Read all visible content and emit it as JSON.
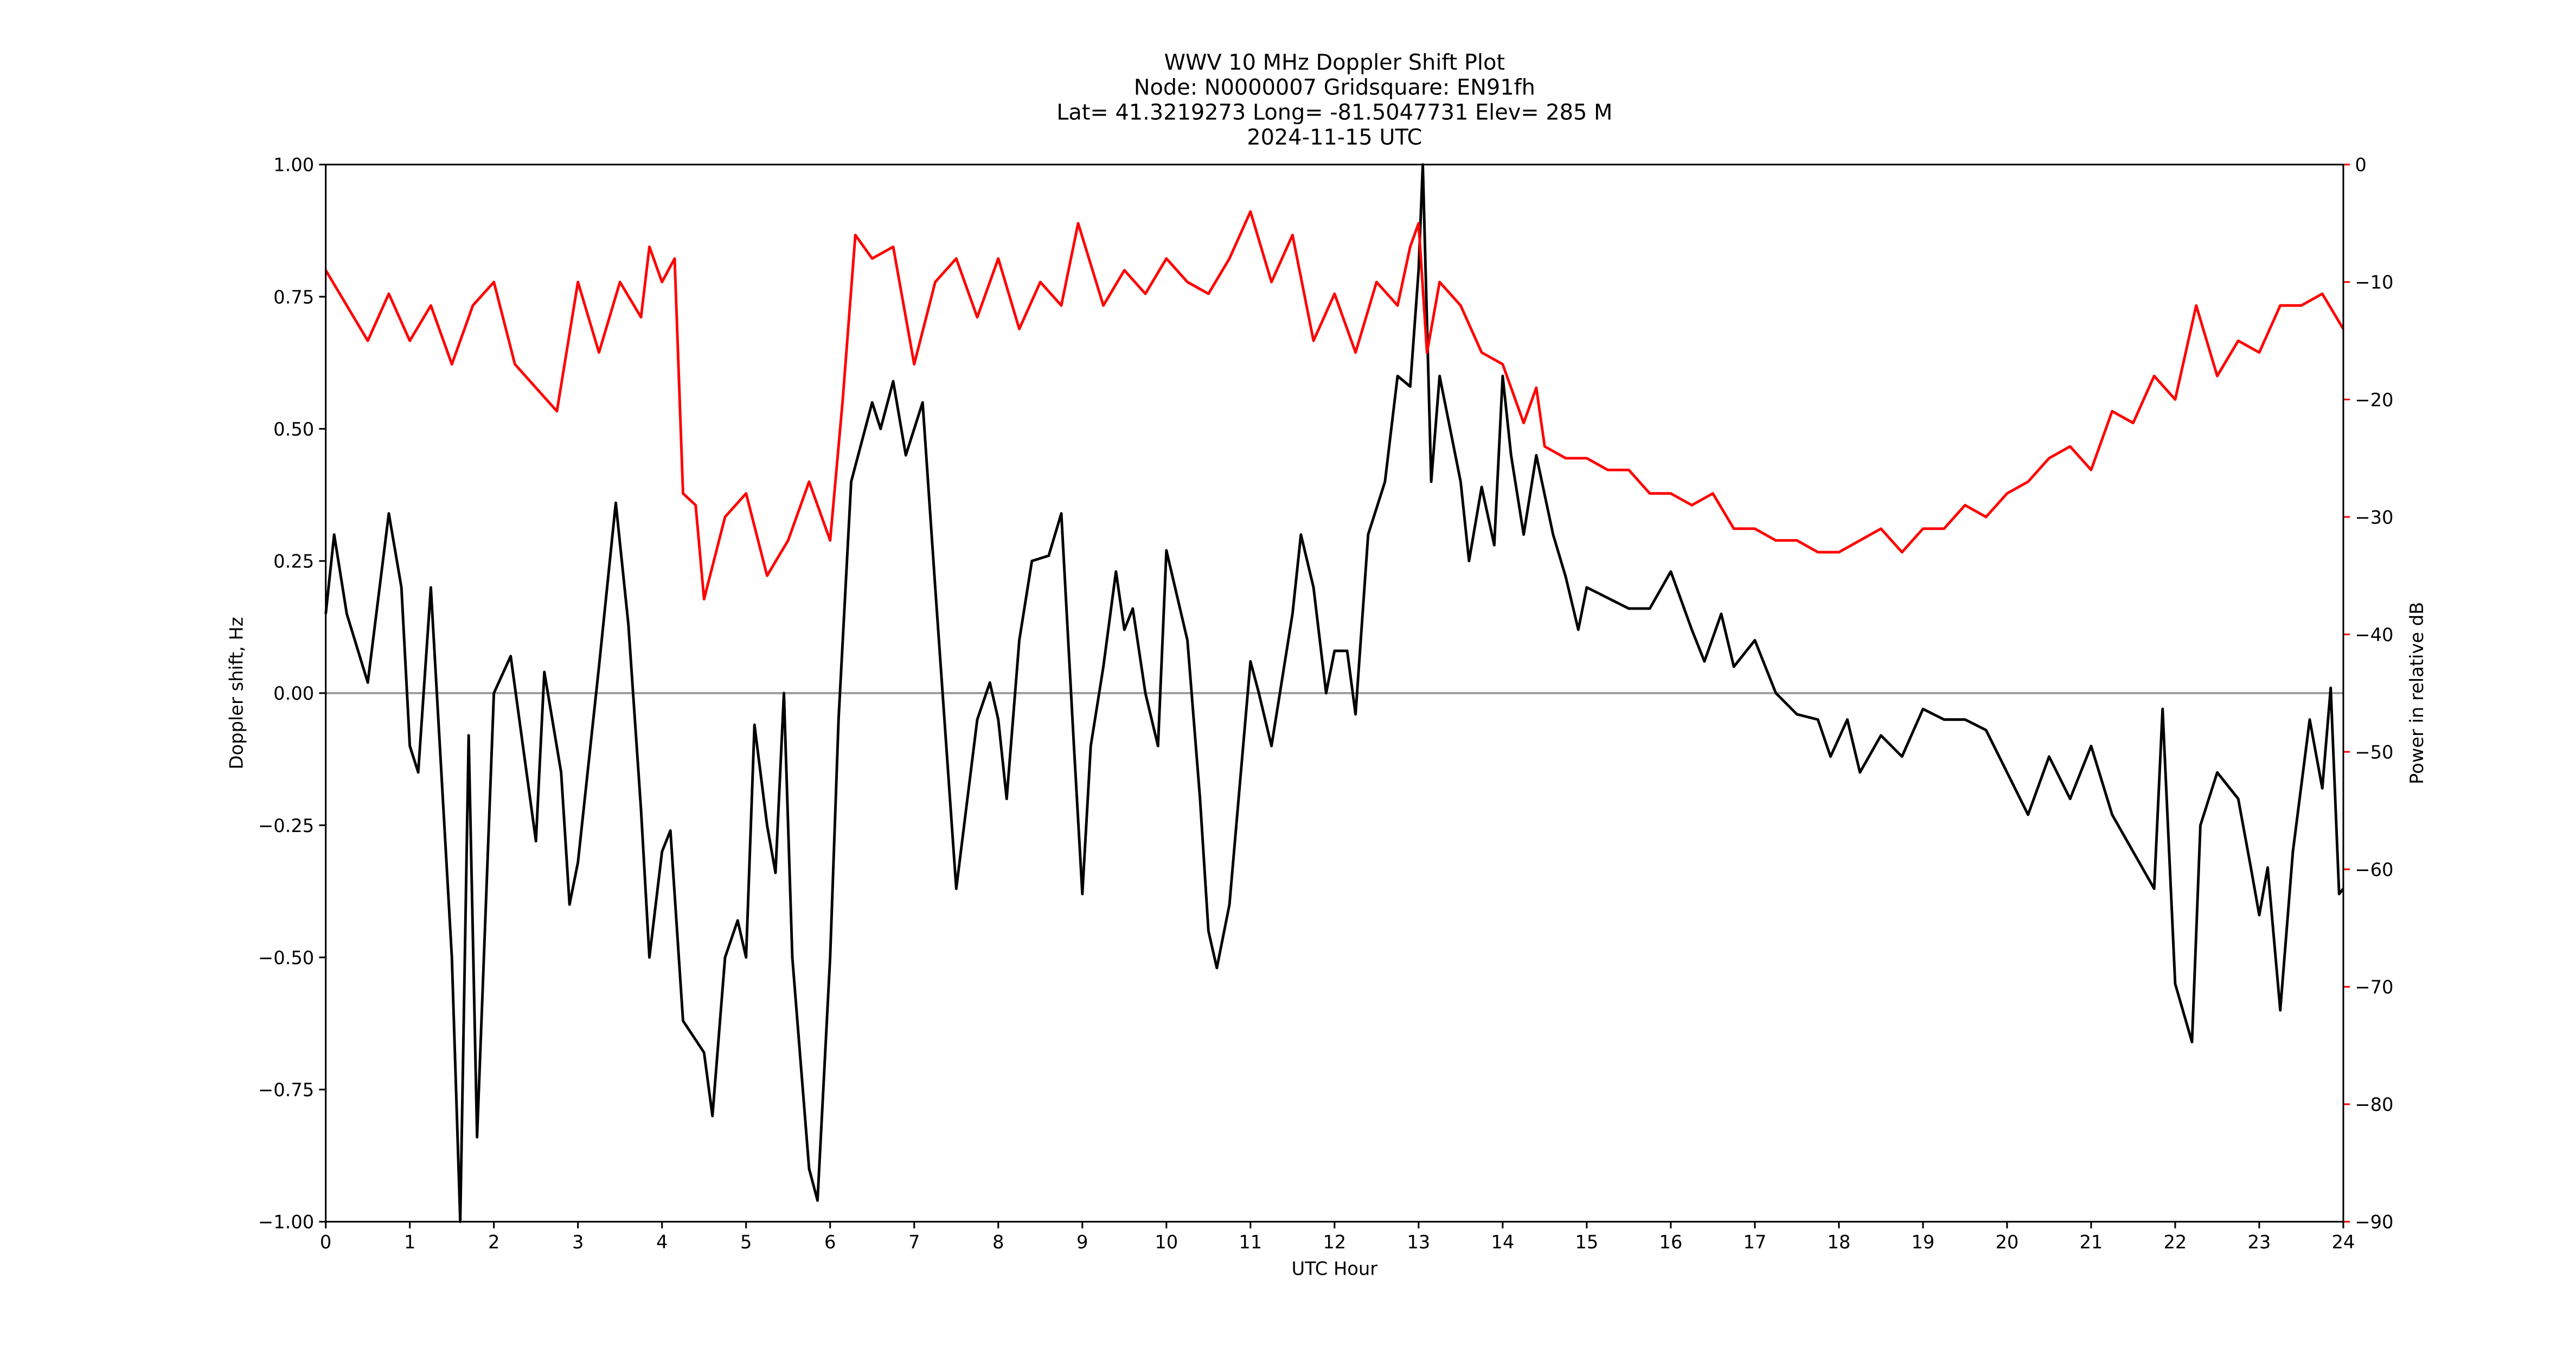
{
  "chart_data": {
    "type": "line",
    "title": [
      "WWV 10 MHz Doppler Shift Plot",
      "Node:  N0000007     Gridsquare:  EN91fh",
      "Lat= 41.3219273    Long= -81.5047731    Elev= 285 M",
      "2024-11-15  UTC"
    ],
    "xlabel": "UTC Hour",
    "ylabel": "Doppler shift, Hz",
    "y2label": "Power in relative dB",
    "xlim": [
      0,
      24
    ],
    "xticks": [
      0,
      1,
      2,
      3,
      4,
      5,
      6,
      7,
      8,
      9,
      10,
      11,
      12,
      13,
      14,
      15,
      16,
      17,
      18,
      19,
      20,
      21,
      22,
      23,
      24
    ],
    "ylim": [
      -1,
      1
    ],
    "yticks": [
      {
        "value": -1,
        "label": "−1.00"
      },
      {
        "value": -0.75,
        "label": "−0.75"
      },
      {
        "value": -0.5,
        "label": "−0.50"
      },
      {
        "value": -0.25,
        "label": "−0.25"
      },
      {
        "value": 0,
        "label": "0.00"
      },
      {
        "value": 0.25,
        "label": "0.25"
      },
      {
        "value": 0.5,
        "label": "0.50"
      },
      {
        "value": 0.75,
        "label": "0.75"
      },
      {
        "value": 1,
        "label": "1.00"
      }
    ],
    "y2lim": [
      -90,
      0
    ],
    "y2ticks": [
      {
        "value": -90,
        "label": "−90"
      },
      {
        "value": -80,
        "label": "−80"
      },
      {
        "value": -70,
        "label": "−70"
      },
      {
        "value": -60,
        "label": "−60"
      },
      {
        "value": -50,
        "label": "−50"
      },
      {
        "value": -40,
        "label": "−40"
      },
      {
        "value": -30,
        "label": "−30"
      },
      {
        "value": -20,
        "label": "−20"
      },
      {
        "value": -10,
        "label": "−10"
      },
      0
    ],
    "y2color": "#ff0000",
    "hline": 0,
    "hline_color": "#999999",
    "series": [
      {
        "color": "#000000",
        "x": [
          0,
          0.1,
          0.25,
          0.5,
          0.75,
          0.9,
          1.0,
          1.1,
          1.25,
          1.5,
          1.6,
          1.7,
          1.8,
          2.0,
          2.2,
          2.5,
          2.6,
          2.8,
          2.9,
          3.0,
          3.25,
          3.45,
          3.6,
          3.75,
          3.85,
          4.0,
          4.1,
          4.25,
          4.5,
          4.6,
          4.75,
          4.9,
          5.0,
          5.1,
          5.25,
          5.35,
          5.45,
          5.55,
          5.75,
          5.85,
          6.0,
          6.1,
          6.25,
          6.5,
          6.6,
          6.75,
          6.9,
          7.1,
          7.25,
          7.5,
          7.75,
          7.9,
          8.0,
          8.1,
          8.25,
          8.4,
          8.6,
          8.75,
          8.9,
          9.0,
          9.1,
          9.25,
          9.4,
          9.5,
          9.6,
          9.75,
          9.9,
          10.0,
          10.25,
          10.4,
          10.5,
          10.6,
          10.75,
          11.0,
          11.1,
          11.25,
          11.5,
          11.6,
          11.75,
          11.9,
          12.0,
          12.15,
          12.25,
          12.4,
          12.6,
          12.75,
          12.9,
          13.0,
          13.05,
          13.15,
          13.25,
          13.5,
          13.6,
          13.75,
          13.9,
          14.0,
          14.1,
          14.25,
          14.4,
          14.6,
          14.75,
          14.9,
          15.0,
          15.25,
          15.5,
          15.75,
          16.0,
          16.25,
          16.4,
          16.6,
          16.75,
          17.0,
          17.25,
          17.5,
          17.75,
          17.9,
          18.1,
          18.25,
          18.5,
          18.75,
          19.0,
          19.25,
          19.5,
          19.75,
          20.0,
          20.25,
          20.5,
          20.75,
          21.0,
          21.25,
          21.5,
          21.75,
          21.85,
          22.0,
          22.2,
          22.3,
          22.5,
          22.75,
          22.9,
          23.0,
          23.1,
          23.25,
          23.4,
          23.6,
          23.75,
          23.85,
          23.95,
          24.0
        ],
        "values": [
          0.15,
          0.3,
          0.15,
          0.02,
          0.34,
          0.2,
          -0.1,
          -0.15,
          0.2,
          -0.5,
          -1.0,
          -0.08,
          -0.84,
          0.0,
          0.07,
          -0.28,
          0.04,
          -0.15,
          -0.4,
          -0.32,
          0.05,
          0.36,
          0.13,
          -0.22,
          -0.5,
          -0.3,
          -0.26,
          -0.62,
          -0.68,
          -0.8,
          -0.5,
          -0.43,
          -0.5,
          -0.06,
          -0.25,
          -0.34,
          0.0,
          -0.5,
          -0.9,
          -0.96,
          -0.5,
          -0.05,
          0.4,
          0.55,
          0.5,
          0.59,
          0.45,
          0.55,
          0.2,
          -0.37,
          -0.05,
          0.02,
          -0.05,
          -0.2,
          0.1,
          0.25,
          0.26,
          0.34,
          -0.1,
          -0.38,
          -0.1,
          0.05,
          0.23,
          0.12,
          0.16,
          0.0,
          -0.1,
          0.27,
          0.1,
          -0.2,
          -0.45,
          -0.52,
          -0.4,
          0.06,
          0.0,
          -0.1,
          0.15,
          0.3,
          0.2,
          0.0,
          0.08,
          0.08,
          -0.04,
          0.3,
          0.4,
          0.6,
          0.58,
          0.8,
          1.0,
          0.4,
          0.6,
          0.4,
          0.25,
          0.39,
          0.28,
          0.6,
          0.45,
          0.3,
          0.45,
          0.3,
          0.22,
          0.12,
          0.2,
          0.18,
          0.16,
          0.16,
          0.23,
          0.12,
          0.06,
          0.15,
          0.05,
          0.1,
          0.0,
          -0.04,
          -0.05,
          -0.12,
          -0.05,
          -0.15,
          -0.08,
          -0.12,
          -0.03,
          -0.05,
          -0.05,
          -0.07,
          -0.15,
          -0.23,
          -0.12,
          -0.2,
          -0.1,
          -0.23,
          -0.3,
          -0.37,
          -0.03,
          -0.55,
          -0.66,
          -0.25,
          -0.15,
          -0.2,
          -0.33,
          -0.42,
          -0.33,
          -0.6,
          -0.3,
          -0.05,
          -0.18,
          0.01,
          -0.38,
          -0.37
        ]
      },
      {
        "color": "#ff0000",
        "axis": "y2",
        "x": [
          0,
          0.25,
          0.5,
          0.75,
          1.0,
          1.25,
          1.5,
          1.75,
          2.0,
          2.25,
          2.5,
          2.75,
          3.0,
          3.25,
          3.5,
          3.75,
          3.85,
          4.0,
          4.15,
          4.25,
          4.4,
          4.5,
          4.75,
          5.0,
          5.25,
          5.5,
          5.75,
          6.0,
          6.15,
          6.3,
          6.5,
          6.75,
          7.0,
          7.25,
          7.5,
          7.75,
          8.0,
          8.25,
          8.5,
          8.75,
          8.95,
          9.25,
          9.5,
          9.75,
          10.0,
          10.25,
          10.5,
          10.75,
          11.0,
          11.25,
          11.5,
          11.75,
          12.0,
          12.25,
          12.5,
          12.75,
          12.9,
          13.0,
          13.1,
          13.25,
          13.5,
          13.75,
          14.0,
          14.25,
          14.4,
          14.5,
          14.75,
          15.0,
          15.25,
          15.5,
          15.75,
          16.0,
          16.25,
          16.5,
          16.75,
          17.0,
          17.25,
          17.5,
          17.75,
          18.0,
          18.25,
          18.5,
          18.75,
          19.0,
          19.25,
          19.5,
          19.75,
          20.0,
          20.25,
          20.5,
          20.75,
          21.0,
          21.25,
          21.5,
          21.75,
          22.0,
          22.25,
          22.5,
          22.75,
          23.0,
          23.25,
          23.5,
          23.75,
          24.0
        ],
        "values": [
          -9,
          -12,
          -15,
          -11,
          -15,
          -12,
          -17,
          -12,
          -10,
          -17,
          -19,
          -21,
          -10,
          -16,
          -10,
          -13,
          -7,
          -10,
          -8,
          -28,
          -29,
          -37,
          -30,
          -28,
          -35,
          -32,
          -27,
          -32,
          -20,
          -6,
          -8,
          -7,
          -17,
          -10,
          -8,
          -13,
          -8,
          -14,
          -10,
          -12,
          -5,
          -12,
          -9,
          -11,
          -8,
          -10,
          -11,
          -8,
          -4,
          -10,
          -6,
          -15,
          -11,
          -16,
          -10,
          -12,
          -7,
          -5,
          -16,
          -10,
          -12,
          -16,
          -17,
          -22,
          -19,
          -24,
          -25,
          -25,
          -26,
          -26,
          -28,
          -28,
          -29,
          -28,
          -31,
          -31,
          -32,
          -32,
          -33,
          -33,
          -32,
          -31,
          -33,
          -31,
          -31,
          -29,
          -30,
          -28,
          -27,
          -25,
          -24,
          -26,
          -21,
          -22,
          -18,
          -20,
          -12,
          -18,
          -15,
          -16,
          -12,
          -12,
          -11,
          -14
        ]
      }
    ]
  }
}
